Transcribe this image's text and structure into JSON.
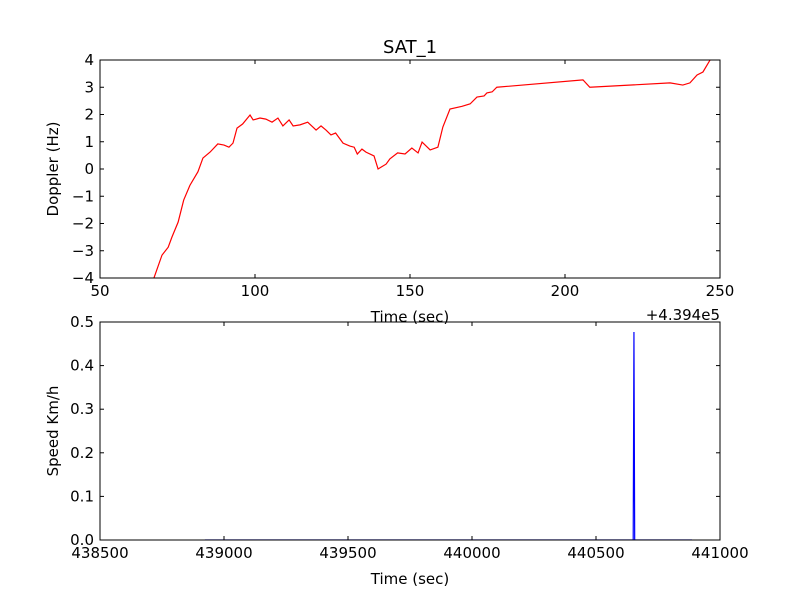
{
  "chart_data": [
    {
      "type": "line",
      "title": "SAT_1",
      "x_label": "Time (sec)",
      "y_label": "Doppler (Hz)",
      "x_offset_label": "+4.394e5",
      "xlim": [
        50,
        250
      ],
      "ylim": [
        -4,
        4
      ],
      "xticks": [
        50,
        100,
        150,
        200,
        250
      ],
      "yticks": [
        {
          "value": -4,
          "label": "−4"
        },
        {
          "value": -3,
          "label": "−3"
        },
        {
          "value": -2,
          "label": "−2"
        },
        {
          "value": -1,
          "label": "−1"
        },
        0,
        1,
        2,
        3,
        4
      ],
      "series": [
        {
          "color": "#ff0000",
          "x": [
            67.4,
            70,
            72,
            73.2,
            75.2,
            77,
            79,
            81.6,
            83.2,
            85.5,
            88,
            90,
            91.6,
            92.9,
            94.2,
            96,
            98.4,
            99.4,
            101.6,
            103.5,
            105.5,
            107.4,
            109,
            111,
            112.3,
            114.5,
            117,
            119.7,
            121.3,
            122.9,
            124.5,
            126,
            128.4,
            130.6,
            132,
            133,
            134.5,
            135.8,
            138.4,
            139.7,
            142.3,
            143.5,
            146,
            148.4,
            150.6,
            152.6,
            153.9,
            156.5,
            159,
            160.6,
            162.9,
            166.8,
            169.4,
            171.6,
            173.9,
            174.8,
            176.5,
            178,
            205.8,
            208,
            233.9,
            238,
            240.3,
            242.6,
            244.5,
            246.8
          ],
          "values": [
            -4,
            -3.16,
            -2.87,
            -2.5,
            -1.95,
            -1.14,
            -0.6,
            -0.1,
            0.4,
            0.62,
            0.92,
            0.88,
            0.8,
            0.95,
            1.5,
            1.65,
            1.98,
            1.8,
            1.87,
            1.83,
            1.72,
            1.87,
            1.58,
            1.8,
            1.58,
            1.62,
            1.72,
            1.43,
            1.58,
            1.43,
            1.25,
            1.32,
            0.95,
            0.84,
            0.8,
            0.55,
            0.73,
            0.62,
            0.48,
            0,
            0.18,
            0.37,
            0.59,
            0.55,
            0.77,
            0.59,
            0.99,
            0.7,
            0.8,
            1.54,
            2.2,
            2.3,
            2.39,
            2.64,
            2.68,
            2.79,
            2.83,
            3.0,
            3.27,
            3.0,
            3.16,
            3.08,
            3.16,
            3.45,
            3.56,
            4
          ]
        }
      ]
    },
    {
      "type": "line",
      "x_label": "Time (sec)",
      "y_label": "Speed Km/h",
      "xlim": [
        438500,
        441000
      ],
      "ylim": [
        0,
        0.5
      ],
      "xticks": [
        438500,
        439000,
        439500,
        440000,
        440500,
        441000
      ],
      "yticks": [
        {
          "value": 0,
          "label": "0.0"
        },
        0.1,
        0.2,
        0.3,
        0.4,
        0.5
      ],
      "series": [
        {
          "color": "#0000ff",
          "x": [
            438923,
            440650,
            440653,
            440656,
            440887
          ],
          "values": [
            0,
            0,
            0.477,
            0,
            0
          ]
        }
      ]
    }
  ]
}
